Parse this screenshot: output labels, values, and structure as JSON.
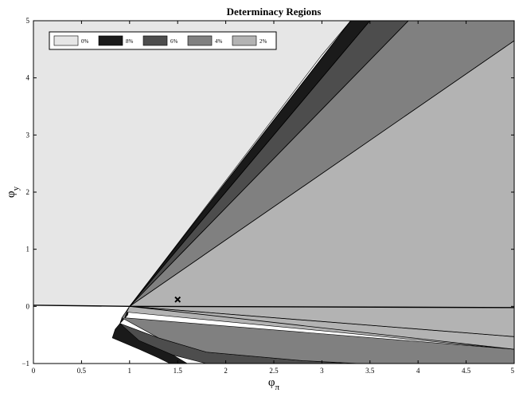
{
  "chart_data": {
    "type": "area",
    "title": "Determinacy Regions",
    "xlabel": "φ",
    "xlabel_sub": "π",
    "ylabel": "φ",
    "ylabel_sub": "y",
    "xlim": [
      0,
      5
    ],
    "ylim": [
      -1,
      5
    ],
    "x_ticks": [
      0,
      0.5,
      1,
      1.5,
      2,
      2.5,
      3,
      3.5,
      4,
      4.5,
      5
    ],
    "x_tick_labels": [
      "0",
      "0.5",
      "1",
      "1.5",
      "2",
      "2.5",
      "3",
      "3.5",
      "4",
      "4.5",
      "5"
    ],
    "y_ticks": [
      -1,
      0,
      1,
      2,
      3,
      4,
      5
    ],
    "y_tick_labels": [
      "−1",
      "0",
      "1",
      "2",
      "3",
      "4",
      "5"
    ],
    "grid": false,
    "legend_placement": "top-left",
    "legend": [
      {
        "label": "0%",
        "color": "#e6e6e6"
      },
      {
        "label": "8%",
        "color": "#1a1a1a"
      },
      {
        "label": "6%",
        "color": "#4d4d4d"
      },
      {
        "label": "4%",
        "color": "#808080"
      },
      {
        "label": "2%",
        "color": "#b3b3b3"
      }
    ],
    "regions": [
      {
        "name": "0%",
        "color": "#e6e6e6",
        "points": [
          [
            0,
            0.02
          ],
          [
            0.06,
            0.02
          ],
          [
            1,
            0
          ],
          [
            3,
            4.4
          ],
          [
            3.3,
            5
          ],
          [
            0,
            5
          ]
        ]
      },
      {
        "name": "8%",
        "color": "#1a1a1a",
        "points": [
          [
            1,
            0
          ],
          [
            3.3,
            5
          ],
          [
            3.5,
            5
          ],
          [
            1,
            0
          ],
          [
            0.98,
            -0.15
          ],
          [
            0.9,
            -0.3
          ],
          [
            0.85,
            -0.4
          ],
          [
            0.82,
            -0.55
          ],
          [
            1.1,
            -0.75
          ],
          [
            1.3,
            -0.9
          ],
          [
            1.42,
            -1
          ],
          [
            1.6,
            -1
          ],
          [
            0.9,
            -0.3
          ]
        ]
      },
      {
        "name": "6%",
        "color": "#4d4d4d",
        "points": [
          [
            1,
            0
          ],
          [
            3.5,
            5
          ],
          [
            3.9,
            5
          ],
          [
            1,
            0
          ],
          [
            0.92,
            -0.2
          ],
          [
            0.9,
            -0.3
          ],
          [
            1.3,
            -0.55
          ],
          [
            1.8,
            -0.8
          ],
          [
            2.8,
            -0.95
          ],
          [
            3.3,
            -1
          ],
          [
            1.8,
            -1
          ],
          [
            1.45,
            -0.85
          ],
          [
            1.1,
            -0.6
          ],
          [
            0.9,
            -0.3
          ]
        ]
      },
      {
        "name": "4%",
        "color": "#808080",
        "points": [
          [
            1,
            0
          ],
          [
            3.9,
            5
          ],
          [
            5,
            5
          ],
          [
            5,
            4.65
          ],
          [
            1,
            0
          ],
          [
            0.97,
            -0.1
          ],
          [
            0.95,
            -0.2
          ],
          [
            5,
            -0.75
          ],
          [
            5,
            -1
          ],
          [
            3.4,
            -1
          ],
          [
            2.8,
            -0.95
          ],
          [
            1.8,
            -0.8
          ],
          [
            1.3,
            -0.55
          ],
          [
            0.92,
            -0.2
          ]
        ]
      },
      {
        "name": "2%",
        "color": "#b3b3b3",
        "points": [
          [
            1,
            0
          ],
          [
            5,
            4.65
          ],
          [
            5,
            -0.53
          ],
          [
            1,
            0
          ],
          [
            0.97,
            -0.1
          ],
          [
            5,
            -0.75
          ],
          [
            5,
            -0.53
          ]
        ]
      }
    ],
    "boundary_lines": [
      {
        "points": [
          [
            0,
            0.02
          ],
          [
            0.06,
            0.02
          ],
          [
            1,
            0
          ],
          [
            5,
            -0.02
          ]
        ]
      },
      {
        "points": [
          [
            1,
            0
          ],
          [
            3.3,
            5
          ]
        ]
      },
      {
        "points": [
          [
            1,
            0
          ],
          [
            3.5,
            5
          ]
        ]
      },
      {
        "points": [
          [
            1,
            0
          ],
          [
            3.9,
            5
          ]
        ]
      },
      {
        "points": [
          [
            1,
            0
          ],
          [
            5,
            4.65
          ]
        ]
      },
      {
        "points": [
          [
            1,
            0
          ],
          [
            5,
            -0.53
          ]
        ]
      },
      {
        "points": [
          [
            1,
            0
          ],
          [
            5,
            -0.75
          ]
        ]
      }
    ],
    "marker": {
      "x": 1.5,
      "y": 0.12,
      "symbol": "x"
    }
  }
}
